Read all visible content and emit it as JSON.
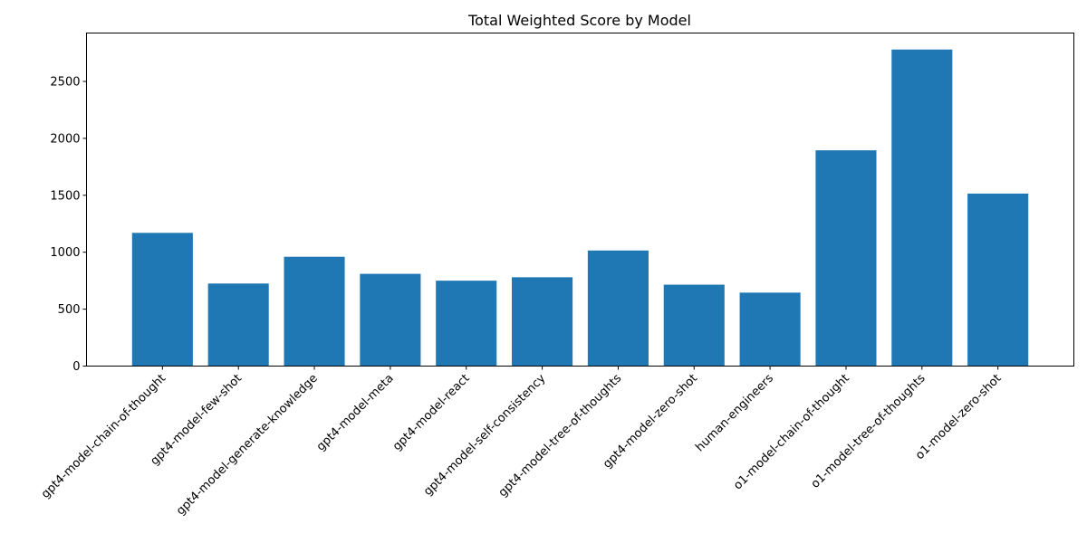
{
  "chart_data": {
    "type": "bar",
    "title": "Total Weighted Score by Model",
    "xlabel": "",
    "ylabel": "",
    "categories": [
      "gpt4-model-chain-of-thought",
      "gpt4-model-few-shot",
      "gpt4-model-generate-knowledge",
      "gpt4-model-meta",
      "gpt4-model-react",
      "gpt4-model-self-consistency",
      "gpt4-model-tree-of-thoughts",
      "gpt4-model-zero-shot",
      "human-engineers",
      "o1-model-chain-of-thought",
      "o1-model-tree-of-thoughts",
      "o1-model-zero-shot"
    ],
    "values": [
      1170,
      725,
      960,
      810,
      750,
      780,
      1015,
      715,
      645,
      1895,
      2780,
      1515
    ],
    "ylim": [
      0,
      2925
    ],
    "yticks": [
      0,
      500,
      1000,
      1500,
      2000,
      2500
    ],
    "color": "#1f77b4",
    "grid": false,
    "legend": false
  }
}
